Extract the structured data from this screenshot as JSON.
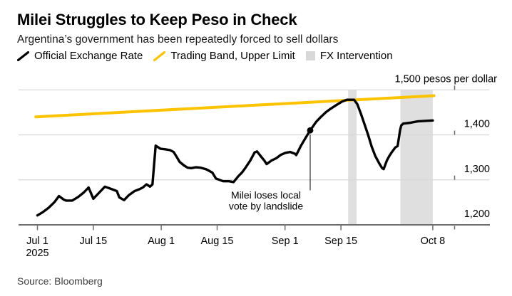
{
  "header": {
    "title": "Milei Struggles to Keep Peso in Check",
    "subtitle": "Argentina’s government has been repeatedly forced to sell dollars"
  },
  "legend": [
    {
      "label": "Official Exchange Rate",
      "swatch": "line",
      "color": "#000000"
    },
    {
      "label": "Trading Band, Upper Limit",
      "swatch": "line",
      "color": "#fcc400"
    },
    {
      "label": "FX Intervention",
      "swatch": "box",
      "color": "#d8d8d8"
    }
  ],
  "source": "Source: Bloomberg",
  "annotation": {
    "line1": "Milei loses local",
    "line2": "vote by landslide"
  },
  "colors": {
    "official_rate": "#000000",
    "trading_band": "#fcc400",
    "fx_band_fill": "#dfdfdf",
    "gridline": "#d8d8d8",
    "axis": "#6e6e6e",
    "annotation_line": "#2b2b2b",
    "label_text": "#000000"
  },
  "chart_data": {
    "type": "line",
    "title": "Milei Struggles to Keep Peso in Check",
    "subtitle": "Argentina’s government has been repeatedly forced to sell dollars",
    "unit": "pesos per dollar",
    "ylim": [
      1200,
      1500
    ],
    "grid": true,
    "legend_position": "top",
    "x_axis": {
      "range_days": [
        0,
        99
      ],
      "ticks": [
        {
          "label": "Jul 1",
          "sub": "2025",
          "day": 0
        },
        {
          "label": "Jul 15",
          "day": 14
        },
        {
          "label": "Aug 1",
          "day": 31
        },
        {
          "label": "Aug 15",
          "day": 45
        },
        {
          "label": "Sep 1",
          "day": 62
        },
        {
          "label": "Sep 15",
          "day": 76
        },
        {
          "label": "Oct 8",
          "day": 99
        }
      ]
    },
    "y_axis": {
      "ticks": [
        {
          "value": 1200,
          "label": "1,200"
        },
        {
          "value": 1300,
          "label": "1,300"
        },
        {
          "value": 1400,
          "label": "1,400"
        },
        {
          "value": 1500,
          "label": "1,500 pesos per dollar"
        }
      ]
    },
    "series": [
      {
        "name": "Official Exchange Rate",
        "color": "#000000",
        "points": [
          [
            0,
            1221
          ],
          [
            1.3,
            1228
          ],
          [
            2.8,
            1238
          ],
          [
            4.3,
            1251
          ],
          [
            5.4,
            1264
          ],
          [
            6.6,
            1256
          ],
          [
            7.2,
            1254
          ],
          [
            8.7,
            1254
          ],
          [
            10.2,
            1262
          ],
          [
            11.6,
            1272
          ],
          [
            12.8,
            1283
          ],
          [
            14,
            1258
          ],
          [
            15.5,
            1272
          ],
          [
            16.9,
            1285
          ],
          [
            18.7,
            1279
          ],
          [
            19.9,
            1275
          ],
          [
            20.5,
            1261
          ],
          [
            21.7,
            1255
          ],
          [
            22.9,
            1266
          ],
          [
            24.3,
            1275
          ],
          [
            25.5,
            1279
          ],
          [
            26.4,
            1283
          ],
          [
            27.3,
            1290
          ],
          [
            28.2,
            1285
          ],
          [
            28.8,
            1290
          ],
          [
            29.6,
            1376
          ],
          [
            30.8,
            1369
          ],
          [
            32,
            1368
          ],
          [
            33.2,
            1366
          ],
          [
            34.1,
            1362
          ],
          [
            34.8,
            1352
          ],
          [
            35.6,
            1340
          ],
          [
            36.7,
            1332
          ],
          [
            37.6,
            1327
          ],
          [
            38.5,
            1326
          ],
          [
            39.7,
            1328
          ],
          [
            40.9,
            1327
          ],
          [
            42.1,
            1324
          ],
          [
            42.6,
            1322
          ],
          [
            43.8,
            1316
          ],
          [
            44.7,
            1303
          ],
          [
            45.6,
            1300
          ],
          [
            46.5,
            1297
          ],
          [
            48,
            1297
          ],
          [
            49.1,
            1295
          ],
          [
            50.3,
            1308
          ],
          [
            51.2,
            1316
          ],
          [
            52.1,
            1327
          ],
          [
            53.3,
            1343
          ],
          [
            54.4,
            1361
          ],
          [
            55,
            1363
          ],
          [
            55.9,
            1353
          ],
          [
            56.8,
            1343
          ],
          [
            57.4,
            1335
          ],
          [
            58.6,
            1343
          ],
          [
            59.8,
            1348
          ],
          [
            61,
            1356
          ],
          [
            62.1,
            1360
          ],
          [
            63.3,
            1362
          ],
          [
            64.5,
            1358
          ],
          [
            64.8,
            1355
          ],
          [
            66,
            1376
          ],
          [
            67.2,
            1394
          ],
          [
            68.3,
            1410
          ],
          [
            69.8,
            1429
          ],
          [
            71,
            1440
          ],
          [
            72.2,
            1450
          ],
          [
            73.4,
            1458
          ],
          [
            74.8,
            1466
          ],
          [
            76.3,
            1474
          ],
          [
            77.5,
            1478
          ],
          [
            79.3,
            1478
          ],
          [
            80.1,
            1468
          ],
          [
            81,
            1447
          ],
          [
            81.9,
            1424
          ],
          [
            82.8,
            1400
          ],
          [
            83.7,
            1374
          ],
          [
            84.6,
            1353
          ],
          [
            85.5,
            1338
          ],
          [
            86.3,
            1326
          ],
          [
            86.7,
            1324
          ],
          [
            87.5,
            1343
          ],
          [
            88.1,
            1353
          ],
          [
            88.7,
            1361
          ],
          [
            89.6,
            1372
          ],
          [
            90.2,
            1375
          ],
          [
            90.8,
            1410
          ],
          [
            91.1,
            1421
          ],
          [
            91.6,
            1425
          ],
          [
            93.4,
            1427
          ],
          [
            95.2,
            1430
          ],
          [
            97,
            1431
          ],
          [
            99,
            1432
          ]
        ]
      },
      {
        "name": "Trading Band, Upper Limit",
        "color": "#fcc400",
        "points": [
          [
            -0.4,
            1440
          ],
          [
            99.3,
            1487
          ]
        ]
      }
    ],
    "fx_intervention_bands": [
      {
        "days": [
          77.8,
          79.9
        ],
        "approx_dates": "Sep 16 - Sep 19"
      },
      {
        "days": [
          90.9,
          99.0
        ],
        "approx_dates": "Sep 29 - Oct 8"
      }
    ],
    "event_marker": {
      "day": 68.3,
      "value": 1410,
      "label": [
        "Milei loses local",
        "vote by landslide"
      ]
    }
  }
}
